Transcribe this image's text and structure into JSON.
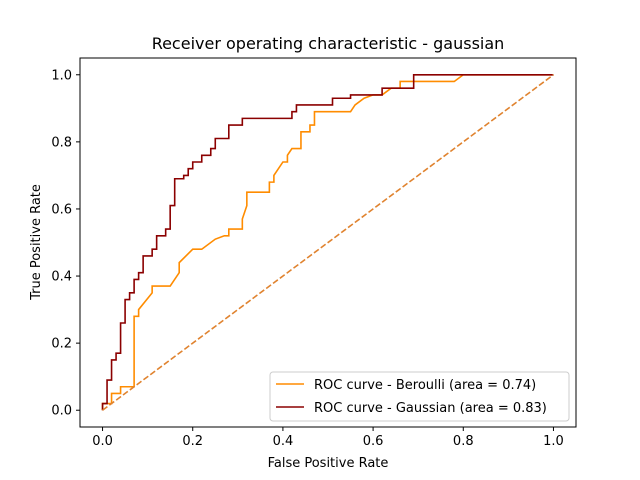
{
  "chart_data": {
    "type": "line",
    "title": "Receiver operating characteristic - gaussian",
    "xlabel": "False Positive Rate",
    "ylabel": "True Positive Rate",
    "xlim": [
      -0.05,
      1.05
    ],
    "ylim": [
      -0.05,
      1.05
    ],
    "xticks": [
      0.0,
      0.2,
      0.4,
      0.6,
      0.8,
      1.0
    ],
    "yticks": [
      0.0,
      0.2,
      0.4,
      0.6,
      0.8,
      1.0
    ],
    "xtick_labels": [
      "0.0",
      "0.2",
      "0.4",
      "0.6",
      "0.8",
      "1.0"
    ],
    "ytick_labels": [
      "0.0",
      "0.2",
      "0.4",
      "0.6",
      "0.8",
      "1.0"
    ],
    "grid": false,
    "legend_position": "lower-right",
    "series": [
      {
        "name": "ROC curve - Beroulli (area = 0.74)",
        "color": "#ff8c00",
        "dash": "solid",
        "points": [
          [
            0.0,
            0.0
          ],
          [
            0.0,
            0.02
          ],
          [
            0.02,
            0.02
          ],
          [
            0.02,
            0.05
          ],
          [
            0.04,
            0.05
          ],
          [
            0.04,
            0.07
          ],
          [
            0.07,
            0.07
          ],
          [
            0.07,
            0.28
          ],
          [
            0.08,
            0.28
          ],
          [
            0.08,
            0.3
          ],
          [
            0.11,
            0.35
          ],
          [
            0.11,
            0.37
          ],
          [
            0.15,
            0.37
          ],
          [
            0.17,
            0.41
          ],
          [
            0.17,
            0.44
          ],
          [
            0.2,
            0.48
          ],
          [
            0.22,
            0.48
          ],
          [
            0.25,
            0.51
          ],
          [
            0.27,
            0.52
          ],
          [
            0.28,
            0.52
          ],
          [
            0.28,
            0.54
          ],
          [
            0.31,
            0.54
          ],
          [
            0.31,
            0.57
          ],
          [
            0.32,
            0.61
          ],
          [
            0.32,
            0.65
          ],
          [
            0.37,
            0.65
          ],
          [
            0.37,
            0.68
          ],
          [
            0.38,
            0.68
          ],
          [
            0.38,
            0.7
          ],
          [
            0.39,
            0.72
          ],
          [
            0.4,
            0.74
          ],
          [
            0.41,
            0.74
          ],
          [
            0.41,
            0.76
          ],
          [
            0.42,
            0.78
          ],
          [
            0.44,
            0.78
          ],
          [
            0.44,
            0.83
          ],
          [
            0.46,
            0.83
          ],
          [
            0.46,
            0.85
          ],
          [
            0.47,
            0.85
          ],
          [
            0.47,
            0.89
          ],
          [
            0.55,
            0.89
          ],
          [
            0.56,
            0.91
          ],
          [
            0.58,
            0.93
          ],
          [
            0.6,
            0.94
          ],
          [
            0.62,
            0.94
          ],
          [
            0.64,
            0.96
          ],
          [
            0.66,
            0.96
          ],
          [
            0.66,
            0.98
          ],
          [
            0.78,
            0.98
          ],
          [
            0.8,
            1.0
          ],
          [
            1.0,
            1.0
          ]
        ]
      },
      {
        "name": "ROC curve - Gaussian (area = 0.83)",
        "color": "#8b0000",
        "dash": "solid",
        "points": [
          [
            0.0,
            0.0
          ],
          [
            0.0,
            0.02
          ],
          [
            0.01,
            0.02
          ],
          [
            0.01,
            0.09
          ],
          [
            0.02,
            0.09
          ],
          [
            0.02,
            0.15
          ],
          [
            0.03,
            0.15
          ],
          [
            0.03,
            0.17
          ],
          [
            0.04,
            0.17
          ],
          [
            0.04,
            0.26
          ],
          [
            0.05,
            0.26
          ],
          [
            0.05,
            0.33
          ],
          [
            0.06,
            0.33
          ],
          [
            0.06,
            0.35
          ],
          [
            0.07,
            0.35
          ],
          [
            0.07,
            0.39
          ],
          [
            0.08,
            0.39
          ],
          [
            0.08,
            0.41
          ],
          [
            0.09,
            0.41
          ],
          [
            0.09,
            0.46
          ],
          [
            0.11,
            0.46
          ],
          [
            0.11,
            0.48
          ],
          [
            0.12,
            0.48
          ],
          [
            0.12,
            0.52
          ],
          [
            0.14,
            0.52
          ],
          [
            0.14,
            0.54
          ],
          [
            0.15,
            0.54
          ],
          [
            0.15,
            0.61
          ],
          [
            0.16,
            0.61
          ],
          [
            0.16,
            0.69
          ],
          [
            0.18,
            0.69
          ],
          [
            0.18,
            0.7
          ],
          [
            0.19,
            0.7
          ],
          [
            0.19,
            0.72
          ],
          [
            0.2,
            0.72
          ],
          [
            0.2,
            0.74
          ],
          [
            0.22,
            0.74
          ],
          [
            0.22,
            0.76
          ],
          [
            0.24,
            0.76
          ],
          [
            0.24,
            0.78
          ],
          [
            0.25,
            0.78
          ],
          [
            0.25,
            0.81
          ],
          [
            0.28,
            0.81
          ],
          [
            0.28,
            0.85
          ],
          [
            0.31,
            0.85
          ],
          [
            0.31,
            0.87
          ],
          [
            0.42,
            0.87
          ],
          [
            0.42,
            0.89
          ],
          [
            0.43,
            0.89
          ],
          [
            0.43,
            0.91
          ],
          [
            0.51,
            0.91
          ],
          [
            0.51,
            0.93
          ],
          [
            0.55,
            0.93
          ],
          [
            0.55,
            0.94
          ],
          [
            0.62,
            0.94
          ],
          [
            0.62,
            0.96
          ],
          [
            0.69,
            0.96
          ],
          [
            0.69,
            1.0
          ],
          [
            1.0,
            1.0
          ]
        ]
      },
      {
        "name": "",
        "color": "#e0832f",
        "dash": "dashed",
        "points": [
          [
            0.0,
            0.0
          ],
          [
            1.0,
            1.0
          ]
        ]
      }
    ]
  }
}
